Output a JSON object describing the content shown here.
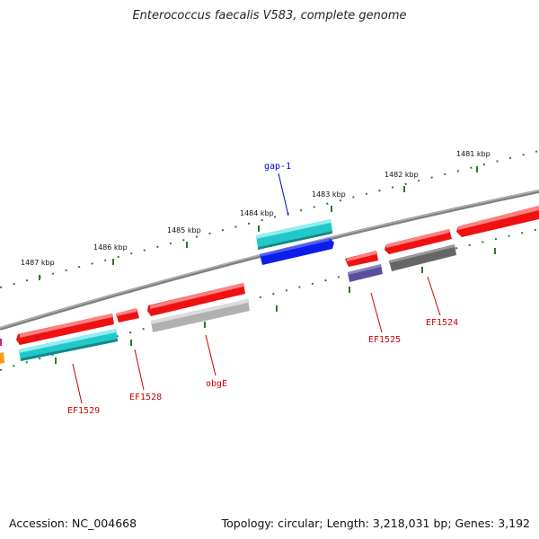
{
  "title": "Enterococcus faecalis V583, complete genome",
  "footer": {
    "accession": "Accession: NC_004668",
    "summary": "Topology: circular; Length: 3,218,031 bp; Genes: 3,192"
  },
  "axis_labels": [
    "1481 kbp",
    "1482 kbp",
    "1483 kbp",
    "1484 kbp",
    "1485 kbp",
    "1486 kbp",
    "1487 kbp"
  ],
  "gene_labels": [
    {
      "id": "gap1",
      "text": "gap-1",
      "color": "#0000cc"
    },
    {
      "id": "ef1525",
      "text": "EF1525",
      "color": "#cc0000"
    },
    {
      "id": "ef1524",
      "text": "EF1524",
      "color": "#cc0000"
    },
    {
      "id": "obge",
      "text": "obgE",
      "color": "#cc0000"
    },
    {
      "id": "ef1528",
      "text": "EF1528",
      "color": "#cc0000"
    },
    {
      "id": "ef1529",
      "text": "EF1529",
      "color": "#cc0000"
    }
  ],
  "colors": {
    "backbone": "#808080",
    "tick": "#2a7a2a",
    "gene_red": "#ee1111",
    "gene_cyan": "#22c8c8",
    "gene_blue": "#0b1de8",
    "gene_gray": "#666666",
    "gene_lightgray": "#b0b0b0",
    "gene_indigo": "#5a4f9a",
    "gene_orange": "#ff9a1a"
  }
}
